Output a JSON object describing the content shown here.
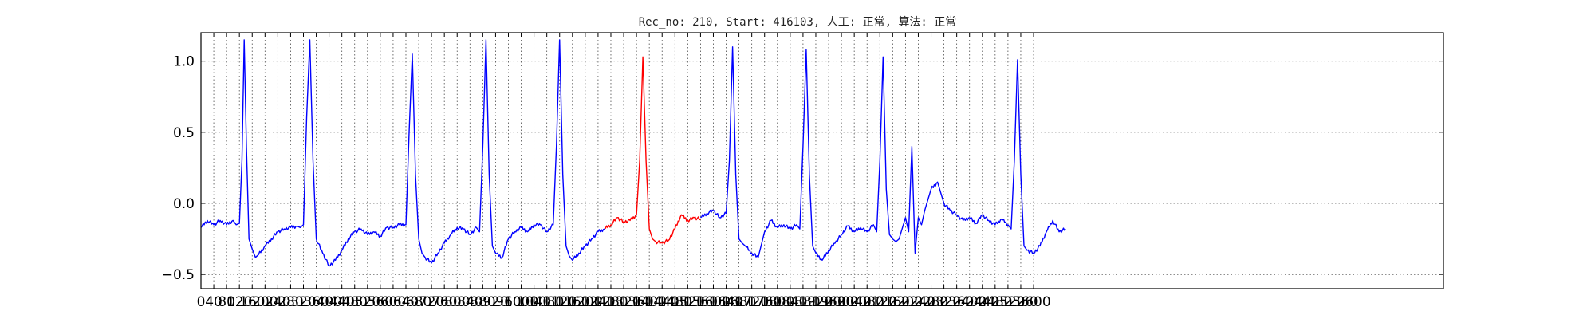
{
  "chart_data": {
    "type": "line",
    "title": "Rec_no: 210, Start: 416103, 人工: 正常, 算法: 正常",
    "xlabel": "",
    "ylabel": "",
    "xlim": [
      0,
      3880
    ],
    "ylim": [
      -0.6,
      1.2
    ],
    "grid": true,
    "x_ticks": [
      0,
      40,
      80,
      120,
      160,
      200,
      240,
      280,
      320,
      360,
      400,
      440,
      480,
      520,
      560,
      600,
      640,
      680,
      720,
      760,
      800,
      840,
      880,
      920,
      960,
      1000,
      1040,
      1080,
      1120,
      1160,
      1200,
      1240,
      1280,
      1320,
      1360,
      1400,
      1440,
      1480,
      1520,
      1560,
      1600,
      1640,
      1680,
      1720,
      1760,
      1800,
      1840,
      1880,
      1920,
      1960,
      2000,
      2040,
      2080,
      2120,
      2160,
      2200,
      2240,
      2280,
      2320,
      2360,
      2400,
      2440,
      2480,
      2520,
      2560,
      2600
    ],
    "x_tick_labels": [
      "0",
      "40",
      "80",
      "120",
      "160",
      "200",
      "240",
      "280",
      "320",
      "360",
      "400",
      "440",
      "480",
      "520",
      "560",
      "600",
      "640",
      "680",
      "720",
      "760",
      "800",
      "840",
      "880",
      "920",
      "960",
      "1000",
      "1040",
      "1080",
      "1120",
      "1160",
      "1200",
      "1240",
      "1280",
      "1320",
      "1360",
      "1400",
      "1440",
      "1480",
      "1520",
      "1560",
      "1600",
      "1640",
      "1680",
      "1720",
      "1760",
      "1800",
      "1840",
      "1880",
      "1920",
      "1960",
      "2000",
      "2040",
      "2080",
      "2120",
      "2160",
      "2200",
      "2240",
      "2280",
      "2320",
      "2360",
      "2400",
      "2440",
      "2480",
      "2520",
      "2560",
      "2600"
    ],
    "y_ticks": [
      -0.5,
      0.0,
      0.5,
      1.0
    ],
    "y_tick_labels": [
      "−0.5",
      "0.0",
      "0.5",
      "1.0"
    ],
    "colors": {
      "normal": "#0000ff",
      "highlight": "#ff0000"
    },
    "series": [
      {
        "color": "normal",
        "x": [
          0,
          20,
          40,
          60,
          80,
          100,
          110,
          120,
          128,
          135,
          142,
          150,
          160,
          170,
          180,
          200,
          220,
          240,
          260,
          280,
          300,
          310,
          320,
          330,
          340,
          350,
          360,
          380,
          400,
          420,
          440,
          460,
          480,
          500,
          520,
          540,
          560,
          580,
          600,
          620,
          640,
          650,
          660,
          670,
          680,
          690,
          700,
          720,
          740,
          760,
          780,
          800,
          820,
          840,
          860,
          870,
          880,
          890,
          900,
          910,
          920,
          940,
          960,
          980,
          1000,
          1020,
          1040,
          1060,
          1080,
          1100,
          1110,
          1120,
          1130,
          1140,
          1150,
          1160,
          1180,
          1200,
          1220,
          1240,
          1260
        ],
        "y": [
          -0.17,
          -0.12,
          -0.15,
          -0.12,
          -0.15,
          -0.12,
          -0.15,
          -0.14,
          0.3,
          1.15,
          0.4,
          -0.25,
          -0.32,
          -0.38,
          -0.36,
          -0.3,
          -0.25,
          -0.2,
          -0.18,
          -0.17,
          -0.16,
          -0.17,
          -0.15,
          0.6,
          1.15,
          0.3,
          -0.25,
          -0.35,
          -0.44,
          -0.4,
          -0.33,
          -0.25,
          -0.2,
          -0.18,
          -0.22,
          -0.2,
          -0.23,
          -0.17,
          -0.17,
          -0.15,
          -0.15,
          0.5,
          1.05,
          0.2,
          -0.25,
          -0.35,
          -0.38,
          -0.42,
          -0.35,
          -0.28,
          -0.22,
          -0.17,
          -0.18,
          -0.22,
          -0.17,
          -0.2,
          0.4,
          1.15,
          0.2,
          -0.3,
          -0.35,
          -0.38,
          -0.25,
          -0.2,
          -0.17,
          -0.2,
          -0.15,
          -0.15,
          -0.2,
          -0.15,
          0.4,
          1.15,
          0.2,
          -0.3,
          -0.37,
          -0.4,
          -0.35,
          -0.3,
          -0.25,
          -0.2,
          -0.18
        ]
      },
      {
        "color": "highlight",
        "x": [
          1260,
          1280,
          1300,
          1320,
          1340,
          1360,
          1370,
          1380,
          1390,
          1400,
          1410,
          1420,
          1440,
          1460,
          1480,
          1500,
          1520,
          1540,
          1560
        ],
        "y": [
          -0.18,
          -0.15,
          -0.1,
          -0.13,
          -0.12,
          -0.08,
          0.3,
          1.03,
          0.3,
          -0.18,
          -0.25,
          -0.27,
          -0.28,
          -0.26,
          -0.18,
          -0.08,
          -0.12,
          -0.1,
          -0.11
        ]
      },
      {
        "color": "normal",
        "x": [
          1560,
          1580,
          1600,
          1620,
          1640,
          1650,
          1660,
          1670,
          1680,
          1690,
          1700,
          1720,
          1740,
          1760,
          1780,
          1800,
          1820,
          1840,
          1860,
          1870,
          1880,
          1890,
          1900,
          1910,
          1920,
          1940,
          1960,
          1980,
          2000,
          2020,
          2040,
          2060,
          2080,
          2100,
          2110,
          2120,
          2130,
          2140,
          2150,
          2160,
          2170,
          2180,
          2200,
          2210,
          2220,
          2230,
          2240,
          2250,
          2260,
          2280,
          2300,
          2320,
          2340,
          2360,
          2380,
          2400,
          2420,
          2440,
          2460,
          2480,
          2500,
          2520,
          2530,
          2540,
          2550,
          2560,
          2570,
          2580,
          2600,
          2620,
          2640,
          2660,
          2680,
          2700
        ],
        "y": [
          -0.1,
          -0.07,
          -0.05,
          -0.1,
          -0.07,
          0.3,
          1.1,
          0.2,
          -0.25,
          -0.28,
          -0.3,
          -0.35,
          -0.38,
          -0.2,
          -0.12,
          -0.17,
          -0.15,
          -0.18,
          -0.15,
          -0.18,
          0.4,
          1.08,
          0.2,
          -0.3,
          -0.35,
          -0.4,
          -0.33,
          -0.28,
          -0.22,
          -0.16,
          -0.2,
          -0.17,
          -0.2,
          -0.15,
          -0.2,
          0.3,
          1.03,
          0.1,
          -0.22,
          -0.25,
          -0.27,
          -0.25,
          -0.1,
          -0.2,
          0.4,
          -0.35,
          -0.1,
          -0.15,
          -0.05,
          0.1,
          0.15,
          0.0,
          -0.05,
          -0.08,
          -0.12,
          -0.1,
          -0.14,
          -0.08,
          -0.12,
          -0.15,
          -0.11,
          -0.15,
          -0.18,
          0.3,
          1.01,
          0.2,
          -0.3,
          -0.33,
          -0.35,
          -0.3,
          -0.2,
          -0.12,
          -0.2,
          -0.18
        ]
      }
    ]
  }
}
